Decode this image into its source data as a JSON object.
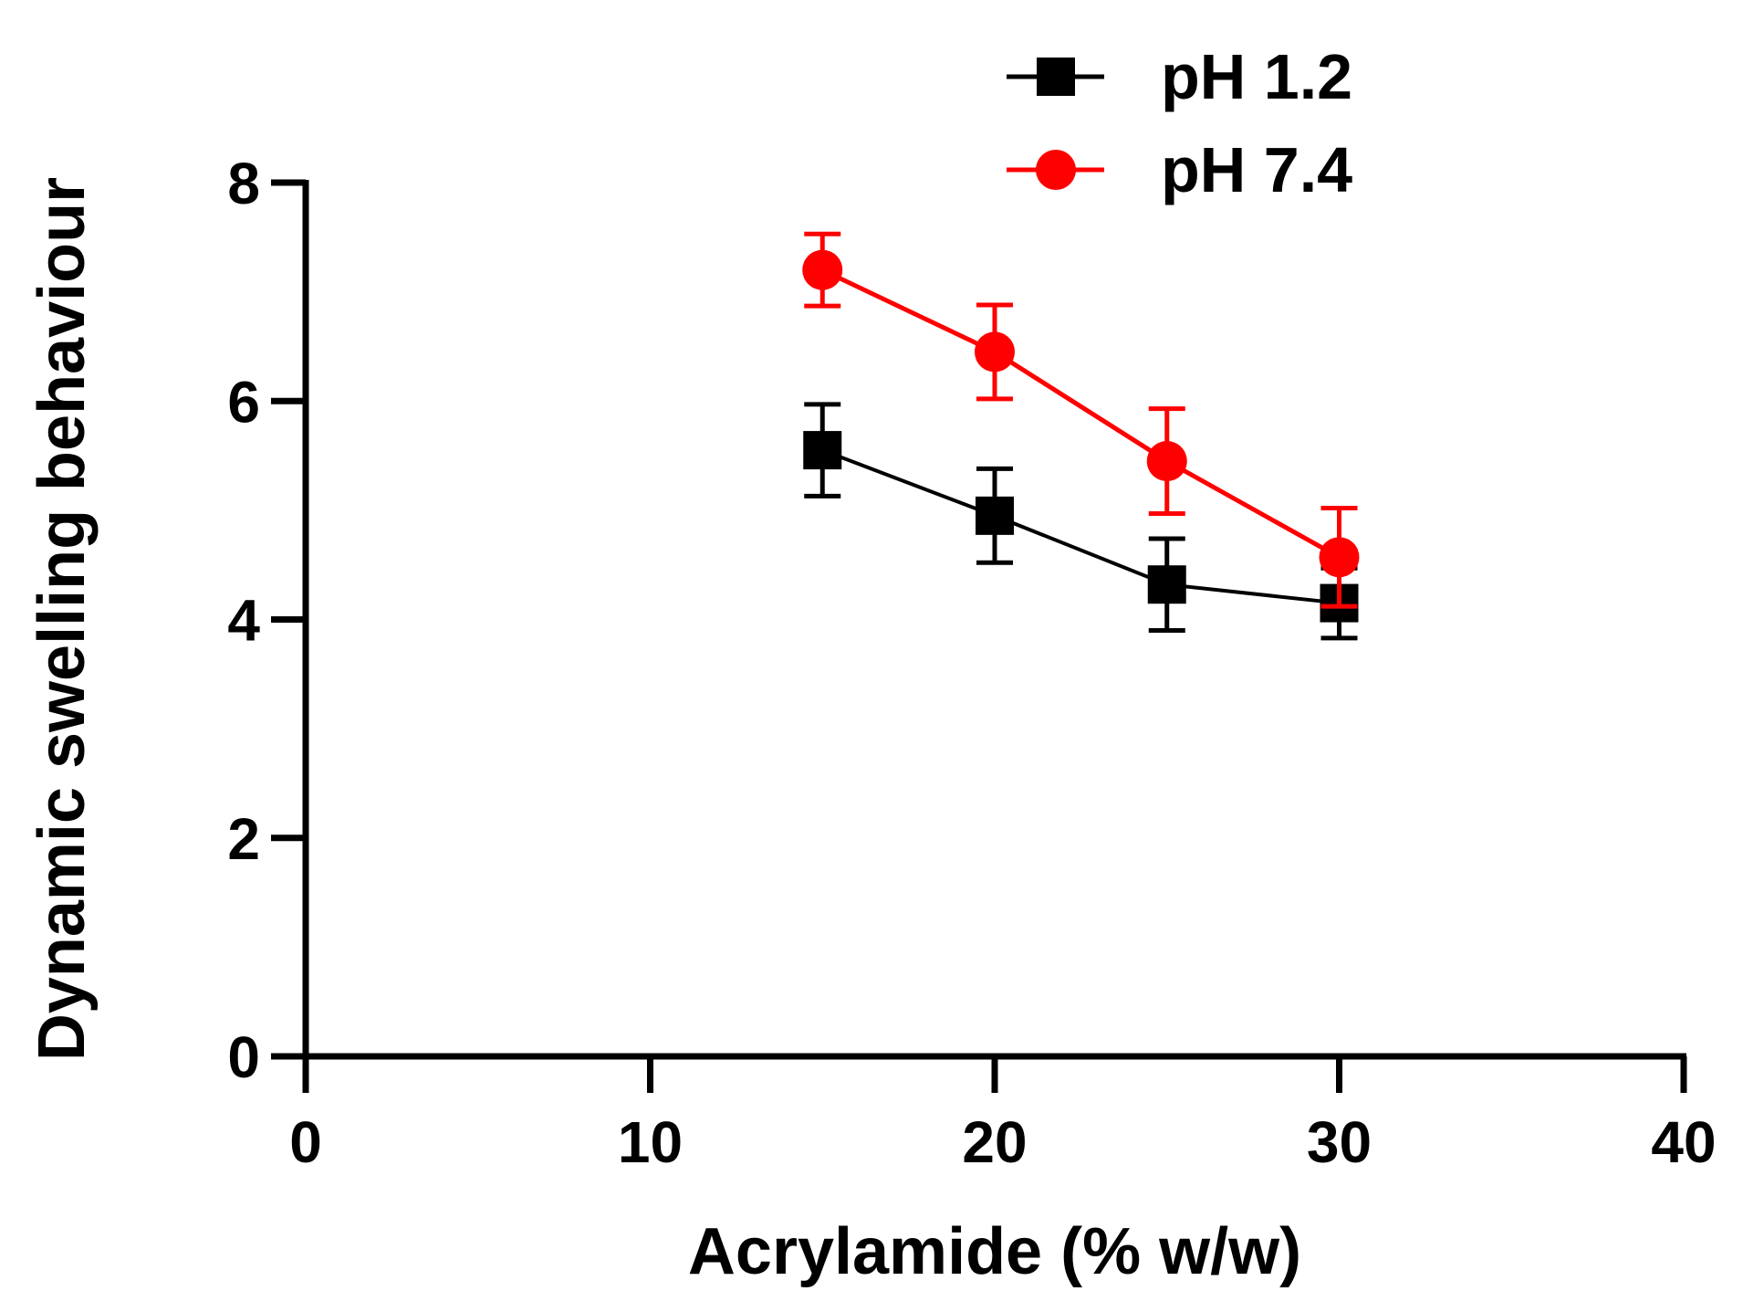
{
  "chart_data": {
    "type": "line",
    "title": "",
    "xlabel": "Acrylamide  (% w/w)",
    "ylabel": "Dynamic swelling behaviour",
    "xlim": [
      0,
      40
    ],
    "ylim": [
      0,
      8
    ],
    "xticks": [
      "0",
      "10",
      "20",
      "30",
      "40"
    ],
    "yticks": [
      "0",
      "2",
      "4",
      "6",
      "8"
    ],
    "x": [
      15,
      20,
      25,
      30
    ],
    "legend_position": "top-right",
    "grid": false,
    "series": [
      {
        "name": "pH 1.2",
        "color": "#000000",
        "marker": "square",
        "values": [
          5.55,
          4.95,
          4.32,
          4.15
        ],
        "errors": [
          0.42,
          0.43,
          0.42,
          0.32
        ]
      },
      {
        "name": "pH 7.4",
        "color": "#ff0000",
        "marker": "circle",
        "values": [
          7.2,
          6.45,
          5.45,
          4.57
        ],
        "errors": [
          0.33,
          0.43,
          0.48,
          0.45
        ]
      }
    ]
  }
}
